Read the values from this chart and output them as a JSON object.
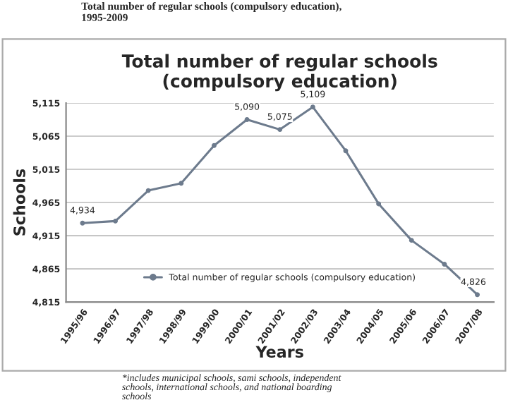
{
  "chart_data": {
    "type": "line",
    "title": "Total number of regular schools\n(compulsory education)",
    "xlabel": "Years",
    "ylabel": "Schools",
    "categories": [
      "1995/96",
      "1996/97",
      "1997/98",
      "1998/99",
      "1999/00",
      "2000/01",
      "2001/02",
      "2002/03",
      "2003/04",
      "2004/05",
      "2005/06",
      "2006/07",
      "2007/08"
    ],
    "series": [
      {
        "name": "Total number of regular schools (compulsory education)",
        "color": "#6d7b8d",
        "values": [
          4934,
          4937,
          4983,
          4994,
          5051,
          5090,
          5075,
          5109,
          5043,
          4963,
          4908,
          4872,
          4826
        ],
        "value_labels": [
          "4,934",
          null,
          null,
          null,
          null,
          "5,090",
          "5,075",
          "5,109",
          null,
          null,
          null,
          null,
          "4,826"
        ]
      }
    ],
    "ylim": [
      4815,
      5115
    ],
    "yticks": [
      {
        "value": 4815,
        "label": "4,815"
      },
      {
        "value": 4865,
        "label": "4,865"
      },
      {
        "value": 4915,
        "label": "4,915"
      },
      {
        "value": 4965,
        "label": "4,965"
      },
      {
        "value": 5015,
        "label": "5,015"
      },
      {
        "value": 5065,
        "label": "5,065"
      },
      {
        "value": 5115,
        "label": "5,115"
      }
    ],
    "grid": "y",
    "legend": "bottom",
    "marker": "circle",
    "line_style": "solid",
    "annotations": [
      "Total number of regular schools (compulsory education),\n1995-2009",
      "*includes municipal schools, sami schools, independent\nschools, international schools, and national boarding\nschools"
    ]
  }
}
